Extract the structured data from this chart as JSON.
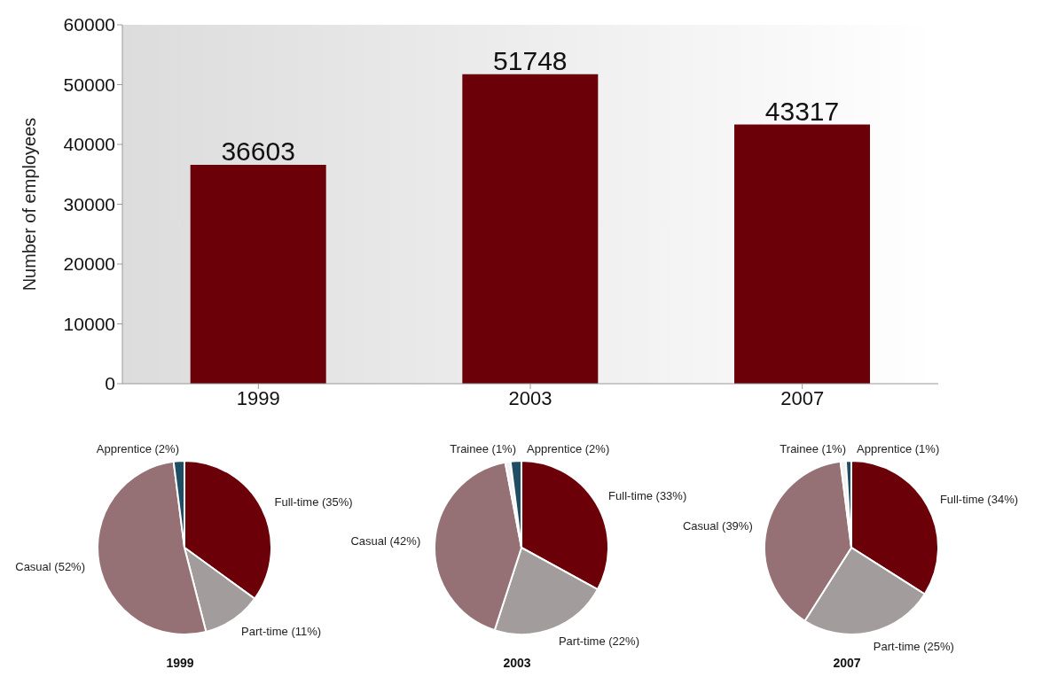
{
  "chart_data": [
    {
      "type": "bar",
      "ylabel": "Number of employees",
      "categories": [
        "1999",
        "2003",
        "2007"
      ],
      "values": [
        36603,
        51748,
        43317
      ],
      "color": "#6b0008",
      "ylim": [
        0,
        60000
      ],
      "yticks": [
        0,
        10000,
        20000,
        30000,
        40000,
        50000,
        60000
      ],
      "data_labels": true
    },
    {
      "type": "pie",
      "title": "1999",
      "categories": [
        "Full-time",
        "Part-time",
        "Casual",
        "Apprentice"
      ],
      "values": [
        35,
        11,
        52,
        2
      ],
      "colors": [
        "#6b0008",
        "#a39c9c",
        "#957074",
        "#1f4e64"
      ],
      "value_labels": [
        "(35%)",
        "(11%)",
        "(52%)",
        "(2%)"
      ]
    },
    {
      "type": "pie",
      "title": "2003",
      "categories": [
        "Full-time",
        "Part-time",
        "Casual",
        "Trainee",
        "Apprentice"
      ],
      "values": [
        33,
        22,
        42,
        1,
        2
      ],
      "colors": [
        "#6b0008",
        "#a39c9c",
        "#957074",
        "#f2f2f2",
        "#1f4e64"
      ],
      "value_labels": [
        "(33%)",
        "(22%)",
        "(42%)",
        "(1%)",
        "(2%)"
      ]
    },
    {
      "type": "pie",
      "title": "2007",
      "categories": [
        "Full-time",
        "Part-time",
        "Casual",
        "Trainee",
        "Apprentice"
      ],
      "values": [
        34,
        25,
        39,
        1,
        1
      ],
      "colors": [
        "#6b0008",
        "#a39c9c",
        "#957074",
        "#f2f2f2",
        "#1f4e64"
      ],
      "value_labels": [
        "(34%)",
        "(25%)",
        "(39%)",
        "(1%)",
        "(1%)"
      ]
    }
  ]
}
